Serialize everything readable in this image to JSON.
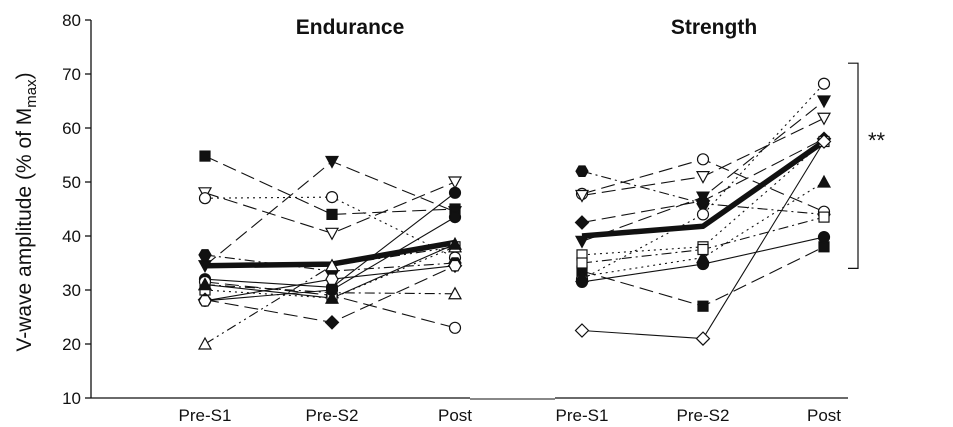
{
  "chart_data": {
    "type": "line",
    "ylabel_main": "V-wave amplitude (% of M",
    "ylabel_sub": "max",
    "ylabel_close": ")",
    "ylim": [
      10,
      80
    ],
    "yticks": [
      10,
      20,
      30,
      40,
      50,
      60,
      70,
      80
    ],
    "grid": false,
    "panels": [
      {
        "title": "Endurance",
        "categories": [
          "Pre-S1",
          "Pre-S2",
          "Post"
        ],
        "mean": [
          34.5,
          34.8,
          38.8
        ],
        "subjects": [
          {
            "values": [
              54.8,
              44,
              45
            ],
            "marker": "square",
            "filled": true,
            "dash": "long"
          },
          {
            "values": [
              48,
              40.5,
              50
            ],
            "marker": "tri-down",
            "filled": false,
            "dash": "long"
          },
          {
            "values": [
              47,
              47.2,
              36
            ],
            "marker": "circle",
            "filled": false,
            "dash": "dot"
          },
          {
            "values": [
              36.5,
              33.5,
              35
            ],
            "marker": "hexagon",
            "filled": true,
            "dash": "dashdot"
          },
          {
            "values": [
              34.5,
              53.8,
              44.5
            ],
            "marker": "tri-down",
            "filled": true,
            "dash": "long"
          },
          {
            "values": [
              32,
              30.5,
              48
            ],
            "marker": "circle",
            "filled": true,
            "dash": "solid"
          },
          {
            "values": [
              31.5,
              29,
              23
            ],
            "marker": "circle",
            "filled": false,
            "dash": "long"
          },
          {
            "values": [
              31,
              29.5,
              29.3
            ],
            "marker": "tri-up",
            "filled": false,
            "dash": "dashdot"
          },
          {
            "values": [
              30,
              28.5,
              38
            ],
            "marker": "square",
            "filled": false,
            "dash": "dot"
          },
          {
            "values": [
              28,
              30,
              43.5
            ],
            "marker": "circle",
            "filled": true,
            "dash": "solid"
          },
          {
            "values": [
              28.2,
              24,
              34.5
            ],
            "marker": "diamond",
            "filled": true,
            "dash": "long"
          },
          {
            "values": [
              28,
              32,
              34.5
            ],
            "marker": "hexagon",
            "filled": false,
            "dash": "solid"
          },
          {
            "values": [
              20,
              34.5,
              38
            ],
            "marker": "tri-up",
            "filled": false,
            "dash": "dashdotdot"
          },
          {
            "values": [
              31,
              28.5,
              38.5
            ],
            "marker": "tri-up",
            "filled": true,
            "dash": "solid"
          }
        ]
      },
      {
        "title": "Strength",
        "categories": [
          "Pre-S1",
          "Pre-S2",
          "Post"
        ],
        "mean": [
          40,
          41.8,
          57.5
        ],
        "subjects": [
          {
            "values": [
              52,
              46,
              44
            ],
            "marker": "hexagon",
            "filled": true,
            "dash": "dashdot"
          },
          {
            "values": [
              47.8,
              54.2,
              44.5
            ],
            "marker": "circle",
            "filled": false,
            "dash": "long"
          },
          {
            "values": [
              47.5,
              51,
              61.8
            ],
            "marker": "tri-down",
            "filled": false,
            "dash": "long"
          },
          {
            "values": [
              42.5,
              46.5,
              58
            ],
            "marker": "diamond",
            "filled": true,
            "dash": "long"
          },
          {
            "values": [
              39,
              47.2,
              65
            ],
            "marker": "tri-down",
            "filled": true,
            "dash": "long"
          },
          {
            "values": [
              36.5,
              38,
              57.5
            ],
            "marker": "square",
            "filled": false,
            "dash": "dot"
          },
          {
            "values": [
              33.5,
              27,
              38
            ],
            "marker": "square",
            "filled": true,
            "dash": "long"
          },
          {
            "values": [
              32,
              44,
              68.2
            ],
            "marker": "circle",
            "filled": false,
            "dash": "dot"
          },
          {
            "values": [
              31.5,
              34.8,
              39.8
            ],
            "marker": "circle",
            "filled": true,
            "dash": "solid"
          },
          {
            "values": [
              32.5,
              36,
              50
            ],
            "marker": "tri-up",
            "filled": true,
            "dash": "dot"
          },
          {
            "values": [
              22.5,
              21,
              57.5
            ],
            "marker": "diamond",
            "filled": false,
            "dash": "solid"
          },
          {
            "values": [
              35,
              37.5,
              43.5
            ],
            "marker": "square",
            "filled": false,
            "dash": "dashdot"
          }
        ]
      }
    ],
    "significance": {
      "label": "**",
      "panel": 1,
      "from": 34,
      "to": 72
    }
  }
}
